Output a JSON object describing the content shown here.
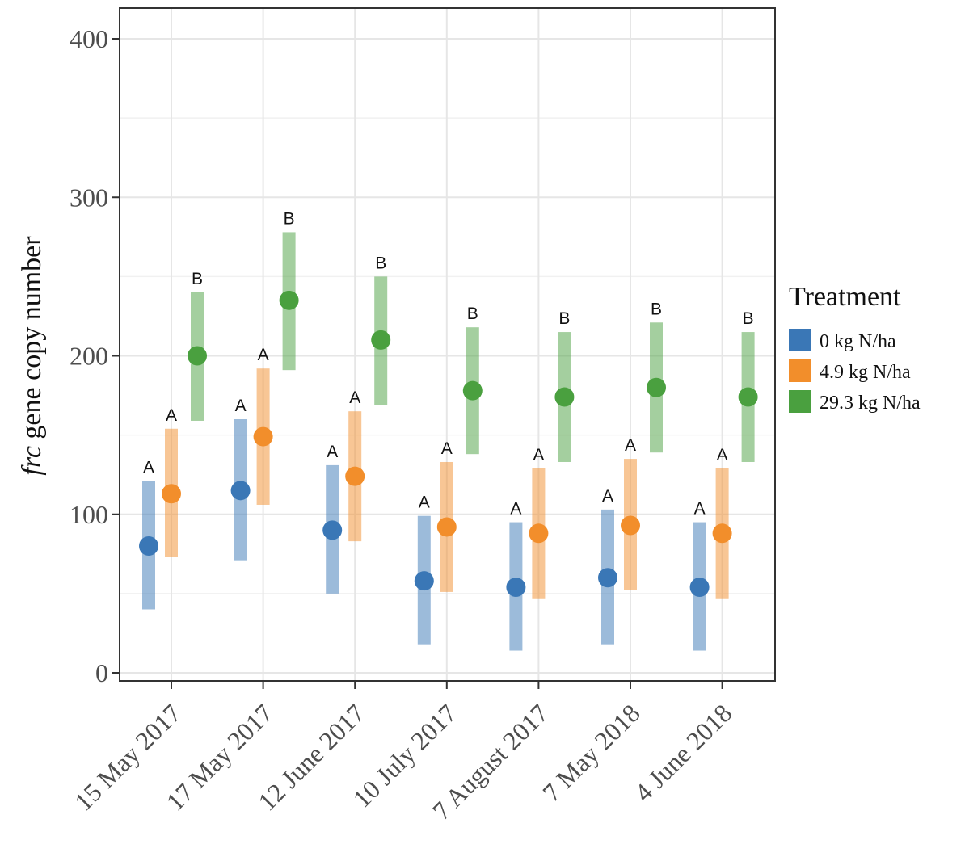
{
  "chart_data": {
    "type": "point-range",
    "title": "",
    "ylabel_italic": "frc",
    "ylabel_rest": " gene copy number",
    "xlabel": "",
    "ylim": [
      0,
      400
    ],
    "yticks": [
      0,
      100,
      200,
      300,
      400
    ],
    "grid": true,
    "legend_position": "right",
    "legend_title": "Treatment",
    "categories": [
      "15 May 2017",
      "17 May 2017",
      "12 June 2017",
      "10 July 2017",
      "7 August 2017",
      "7 May 2018",
      "4 June 2018"
    ],
    "series": [
      {
        "name": "0 kg N/ha",
        "color": "#3A77B6",
        "values": [
          80,
          115,
          90,
          58,
          54,
          60,
          54
        ],
        "lower": [
          40,
          71,
          50,
          18,
          14,
          18,
          14
        ],
        "upper": [
          121,
          160,
          131,
          99,
          95,
          103,
          95
        ],
        "letters": [
          "A",
          "A",
          "A",
          "A",
          "A",
          "A",
          "A"
        ]
      },
      {
        "name": "4.9 kg N/ha",
        "color": "#F28E2B",
        "values": [
          113,
          149,
          124,
          92,
          88,
          93,
          88
        ],
        "lower": [
          73,
          106,
          83,
          51,
          47,
          52,
          47
        ],
        "upper": [
          154,
          192,
          165,
          133,
          129,
          135,
          129
        ],
        "letters": [
          "A",
          "A",
          "A",
          "A",
          "A",
          "A",
          "A"
        ]
      },
      {
        "name": "29.3 kg N/ha",
        "color": "#4AA03F",
        "values": [
          200,
          235,
          210,
          178,
          174,
          180,
          174
        ],
        "lower": [
          159,
          191,
          169,
          138,
          133,
          139,
          133
        ],
        "upper": [
          240,
          278,
          250,
          218,
          215,
          221,
          215
        ],
        "letters": [
          "B",
          "B",
          "B",
          "B",
          "B",
          "B",
          "B"
        ]
      }
    ]
  }
}
